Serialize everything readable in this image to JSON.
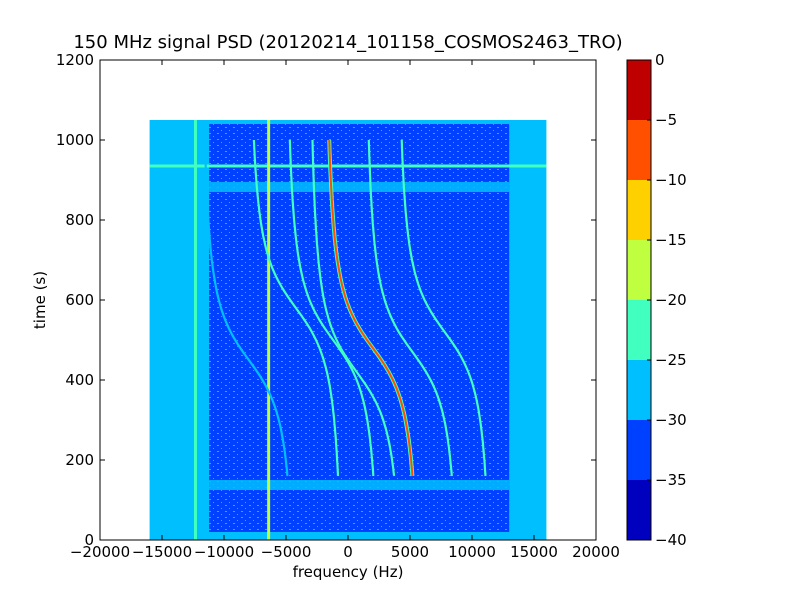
{
  "chart_data": {
    "type": "heatmap",
    "title": "150 MHz signal PSD (20120214_101158_COSMOS2463_TRO)",
    "xlabel": "frequency (Hz)",
    "ylabel": "time (s)",
    "xlim": [
      -20000,
      20000
    ],
    "ylim": [
      0,
      1200
    ],
    "xticks": [
      -20000,
      -15000,
      -10000,
      -5000,
      0,
      5000,
      10000,
      15000,
      20000
    ],
    "xtick_labels": [
      "−20000",
      "−15000",
      "−10000",
      "−5000",
      "0",
      "5000",
      "10000",
      "15000",
      "20000"
    ],
    "yticks": [
      0,
      200,
      400,
      600,
      800,
      1000,
      1200
    ],
    "ytick_labels": [
      "0",
      "200",
      "400",
      "600",
      "800",
      "1000",
      "1200"
    ],
    "data_extent": {
      "freq": [
        -16000,
        16000
      ],
      "time": [
        0,
        1050
      ]
    },
    "colorbar": {
      "levels": [
        -40,
        -35,
        -30,
        -25,
        -20,
        -15,
        -10,
        -5,
        0
      ],
      "tick_labels": [
        "−40",
        "−35",
        "−30",
        "−25",
        "−20",
        "−15",
        "−10",
        "−5",
        "0"
      ],
      "colors": [
        "#0000bf",
        "#0040ff",
        "#00bfff",
        "#40ffbf",
        "#bfff40",
        "#ffd000",
        "#ff5000",
        "#bf0000"
      ]
    },
    "background_level_db": -27,
    "noise_floor_level_db": -32,
    "stationary_lines": [
      {
        "freq": -12300,
        "level_db": -22
      },
      {
        "freq": -6400,
        "level_db": -15
      }
    ],
    "horizontal_bands": [
      {
        "time": 935,
        "level_db": -23
      }
    ],
    "doppler_tracks": [
      {
        "center_freq": 2000,
        "t0": 480,
        "amplitude": 3000,
        "level_db": -8
      },
      {
        "center_freq": -1200,
        "t0": 500,
        "amplitude": 3000,
        "level_db": -22
      },
      {
        "center_freq": -4200,
        "t0": 580,
        "amplitude": 3000,
        "level_db": -23
      },
      {
        "center_freq": 700,
        "t0": 420,
        "amplitude": 3000,
        "level_db": -23
      },
      {
        "center_freq": 5200,
        "t0": 470,
        "amplitude": 3000,
        "level_db": -22
      },
      {
        "center_freq": 7800,
        "t0": 520,
        "amplitude": 3000,
        "level_db": -24
      },
      {
        "center_freq": -8000,
        "t0": 450,
        "amplitude": 3000,
        "level_db": -26
      }
    ]
  }
}
